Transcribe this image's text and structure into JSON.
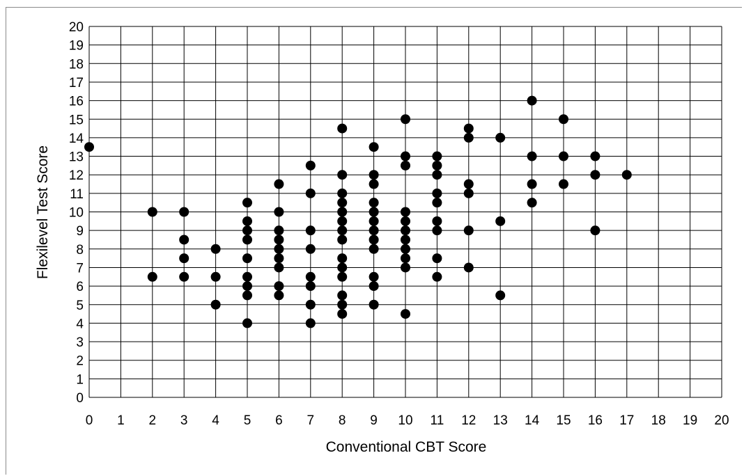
{
  "chart_data": {
    "type": "scatter",
    "title": "",
    "xlabel": "Conventional CBT Score",
    "ylabel": "Flexilevel Test Score",
    "xlim": [
      0,
      20
    ],
    "ylim": [
      0,
      20
    ],
    "x_ticks": [
      "0",
      "1",
      "2",
      "3",
      "4",
      "5",
      "6",
      "7",
      "8",
      "9",
      "10",
      "11",
      "12",
      "13",
      "14",
      "15",
      "16",
      "17",
      "18",
      "19",
      "20"
    ],
    "y_ticks": [
      "0",
      "1",
      "2",
      "3",
      "4",
      "5",
      "6",
      "7",
      "8",
      "9",
      "10",
      "11",
      "12",
      "13",
      "14",
      "15",
      "16",
      "17",
      "18",
      "19",
      "20"
    ],
    "grid": true,
    "legend": "none",
    "marker_color": "#000000",
    "points": [
      [
        0,
        13.5
      ],
      [
        2,
        10
      ],
      [
        2,
        6.5
      ],
      [
        3,
        10
      ],
      [
        3,
        8.5
      ],
      [
        3,
        7.5
      ],
      [
        3,
        6.5
      ],
      [
        4,
        8
      ],
      [
        4,
        6.5
      ],
      [
        4,
        5
      ],
      [
        5,
        10.5
      ],
      [
        5,
        9.5
      ],
      [
        5,
        9
      ],
      [
        5,
        8.5
      ],
      [
        5,
        7.5
      ],
      [
        5,
        6.5
      ],
      [
        5,
        6
      ],
      [
        5,
        5.5
      ],
      [
        5,
        4
      ],
      [
        6,
        11.5
      ],
      [
        6,
        10
      ],
      [
        6,
        9
      ],
      [
        6,
        8.5
      ],
      [
        6,
        8
      ],
      [
        6,
        7.5
      ],
      [
        6,
        7
      ],
      [
        6,
        6
      ],
      [
        6,
        5.5
      ],
      [
        7,
        12.5
      ],
      [
        7,
        11
      ],
      [
        7,
        9
      ],
      [
        7,
        8
      ],
      [
        7,
        6.5
      ],
      [
        7,
        6
      ],
      [
        7,
        5
      ],
      [
        7,
        4
      ],
      [
        8,
        14.5
      ],
      [
        8,
        12
      ],
      [
        8,
        11
      ],
      [
        8,
        10.5
      ],
      [
        8,
        10
      ],
      [
        8,
        9.5
      ],
      [
        8,
        9
      ],
      [
        8,
        8.5
      ],
      [
        8,
        7.5
      ],
      [
        8,
        7
      ],
      [
        8,
        6.5
      ],
      [
        8,
        5.5
      ],
      [
        8,
        5
      ],
      [
        8,
        4.5
      ],
      [
        9,
        13.5
      ],
      [
        9,
        12
      ],
      [
        9,
        11.5
      ],
      [
        9,
        10.5
      ],
      [
        9,
        10
      ],
      [
        9,
        9.5
      ],
      [
        9,
        9
      ],
      [
        9,
        8.5
      ],
      [
        9,
        8
      ],
      [
        9,
        6.5
      ],
      [
        9,
        6
      ],
      [
        9,
        5
      ],
      [
        10,
        15
      ],
      [
        10,
        13
      ],
      [
        10,
        12.5
      ],
      [
        10,
        10
      ],
      [
        10,
        9.5
      ],
      [
        10,
        9
      ],
      [
        10,
        8.5
      ],
      [
        10,
        8
      ],
      [
        10,
        7.5
      ],
      [
        10,
        7
      ],
      [
        10,
        4.5
      ],
      [
        11,
        13
      ],
      [
        11,
        12.5
      ],
      [
        11,
        12
      ],
      [
        11,
        11
      ],
      [
        11,
        10.5
      ],
      [
        11,
        9.5
      ],
      [
        11,
        9
      ],
      [
        11,
        7.5
      ],
      [
        11,
        6.5
      ],
      [
        12,
        14.5
      ],
      [
        12,
        14
      ],
      [
        12,
        11.5
      ],
      [
        12,
        11
      ],
      [
        12,
        9
      ],
      [
        12,
        7
      ],
      [
        13,
        14
      ],
      [
        13,
        9.5
      ],
      [
        13,
        5.5
      ],
      [
        14,
        16
      ],
      [
        14,
        13
      ],
      [
        14,
        11.5
      ],
      [
        14,
        10.5
      ],
      [
        15,
        15
      ],
      [
        15,
        13
      ],
      [
        15,
        11.5
      ],
      [
        16,
        13
      ],
      [
        16,
        12
      ],
      [
        16,
        9
      ],
      [
        17,
        12
      ]
    ]
  }
}
